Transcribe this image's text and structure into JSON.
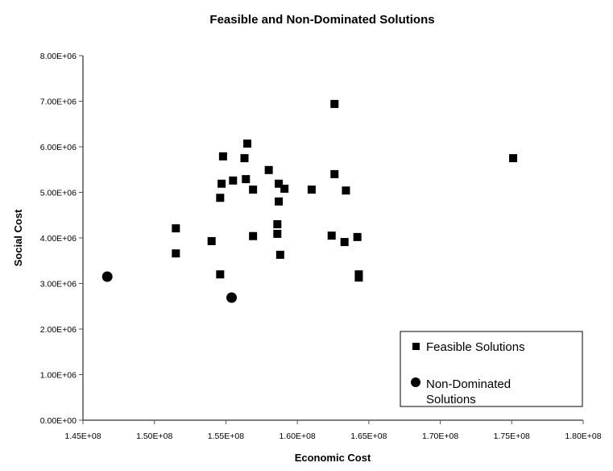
{
  "chart_data": {
    "type": "scatter",
    "title": "Feasible and Non-Dominated Solutions",
    "xlabel": "Economic Cost",
    "ylabel": "Social Cost",
    "xlim": [
      145000000,
      180000000
    ],
    "ylim": [
      0,
      8000000
    ],
    "xticks": [
      "1.45E+08",
      "1.50E+08",
      "1.55E+08",
      "1.60E+08",
      "1.65E+08",
      "1.70E+08",
      "1.75E+08",
      "1.80E+08"
    ],
    "yticks": [
      "0.00E+00",
      "1.00E+06",
      "2.00E+06",
      "3.00E+06",
      "4.00E+06",
      "5.00E+06",
      "6.00E+06",
      "7.00E+06",
      "8.00E+06"
    ],
    "grid": false,
    "legend_position": "bottom-right",
    "series": [
      {
        "name": "Feasible Solutions",
        "marker": "square",
        "color": "#000000",
        "points": [
          [
            151500000.0,
            4210000.0
          ],
          [
            151500000.0,
            3660000.0
          ],
          [
            154000000.0,
            3930000.0
          ],
          [
            154600000.0,
            3200000.0
          ],
          [
            154600000.0,
            4880000.0
          ],
          [
            154700000.0,
            5190000.0
          ],
          [
            154800000.0,
            5790000.0
          ],
          [
            155500000.0,
            5260000.0
          ],
          [
            156300000.0,
            5750000.0
          ],
          [
            156500000.0,
            6070000.0
          ],
          [
            156400000.0,
            5290000.0
          ],
          [
            156900000.0,
            5060000.0
          ],
          [
            156900000.0,
            4040000.0
          ],
          [
            158000000.0,
            5490000.0
          ],
          [
            158700000.0,
            5190000.0
          ],
          [
            158700000.0,
            4800000.0
          ],
          [
            158600000.0,
            4300000.0
          ],
          [
            158600000.0,
            4090000.0
          ],
          [
            158800000.0,
            3630000.0
          ],
          [
            159100000.0,
            5080000.0
          ],
          [
            161000000.0,
            5060000.0
          ],
          [
            162600000.0,
            6940000.0
          ],
          [
            162600000.0,
            5400000.0
          ],
          [
            162400000.0,
            4050000.0
          ],
          [
            163300000.0,
            3910000.0
          ],
          [
            163400000.0,
            5040000.0
          ],
          [
            164200000.0,
            4020000.0
          ],
          [
            164300000.0,
            3200000.0
          ],
          [
            164300000.0,
            3130000.0
          ],
          [
            175100000.0,
            5750000.0
          ]
        ]
      },
      {
        "name": "Non-Dominated Solutions",
        "marker": "circle",
        "color": "#000000",
        "points": [
          [
            146700000.0,
            3150000.0
          ],
          [
            155400000.0,
            2690000.0
          ]
        ]
      }
    ]
  }
}
